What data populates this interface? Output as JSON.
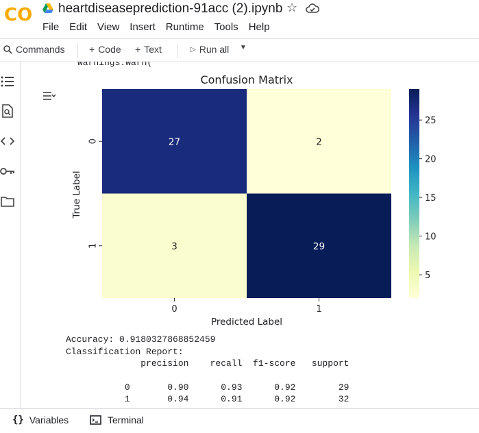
{
  "header": {
    "title": "heartdiseaseprediction-91acc (2).ipynb",
    "logo_text": "CO",
    "menu": [
      "File",
      "Edit",
      "View",
      "Insert",
      "Runtime",
      "Tools",
      "Help"
    ]
  },
  "toolbar": {
    "commands": "Commands",
    "add_code": "Code",
    "add_text": "Text",
    "run_all": "Run all"
  },
  "sidebar_icons": [
    "table-of-contents-icon",
    "find-icon",
    "code-snippets-icon",
    "secrets-key-icon",
    "files-folder-icon"
  ],
  "output": {
    "warning_line": "warnings.warn(",
    "accuracy_line": "Accuracy: 0.9180327868852459",
    "report_title": "Classification Report:",
    "report_header": "              precision    recall  f1-score   support",
    "report_rows": [
      "           0       0.90      0.93      0.92        29",
      "           1       0.94      0.91      0.92        32"
    ]
  },
  "chart_data": {
    "type": "heatmap",
    "title": "Confusion Matrix",
    "xlabel": "Predicted Label",
    "ylabel": "True Label",
    "x_categories": [
      "0",
      "1"
    ],
    "y_categories": [
      "0",
      "1"
    ],
    "values": [
      [
        27,
        2
      ],
      [
        3,
        29
      ]
    ],
    "colormap": "YlGnBu",
    "colorbar_ticks": [
      5,
      10,
      15,
      20,
      25
    ],
    "colorbar_range": [
      2,
      29
    ],
    "colors": {
      "high": "#081d58",
      "mid_high": "#1d2d85",
      "low": "#ffffd9"
    }
  },
  "bottom": {
    "variables": "Variables",
    "terminal": "Terminal"
  }
}
